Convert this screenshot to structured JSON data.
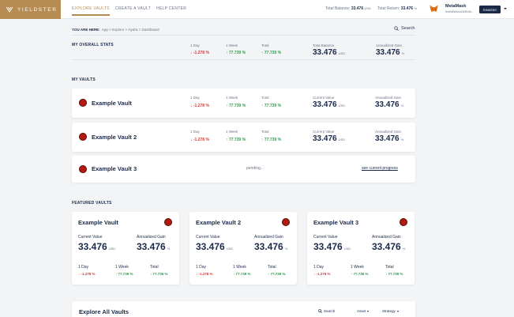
{
  "brand": {
    "name": "YIELDSTER",
    "color": "#b78c52"
  },
  "nav": [
    {
      "label": "EXPLORE VAULTS",
      "active": true
    },
    {
      "label": "CREATE A VAULT",
      "active": false
    },
    {
      "label": "HELP CENTER",
      "active": false
    }
  ],
  "wallet": {
    "total_balance_label": "Total Balance:",
    "total_balance_value": "33.476",
    "total_balance_unit": "USD",
    "total_return_label": "Total Return:",
    "total_return_value": "33.476",
    "total_return_unit": "%",
    "provider": "MetaMask",
    "address": "0x6d5d3a41b5b3e...",
    "network": "RINKEBY"
  },
  "breadcrumb": {
    "prefix": "YOU ARE HERE:",
    "path": "App > Explore > Hydra > Dashboard"
  },
  "search_label": "Search",
  "overall": {
    "title": "MY OVERALL STATS",
    "day_label": "1 Day",
    "day_value": "↓ -1.278 %",
    "week_label": "1 Week",
    "week_value": "↑ 77.739 %",
    "total_label": "Total",
    "total_value": "↑ 77.739 %",
    "balance_label": "Total Balance",
    "balance_value": "33.476",
    "balance_unit": "USD",
    "gain_label": "Annualized Gain",
    "gain_value": "33.476",
    "gain_unit": "%"
  },
  "my_vaults": {
    "title": "MY VAULTS",
    "items": [
      {
        "name": "Example Vault",
        "day_label": "1 Day",
        "day_value": "↓ -1.278 %",
        "week_label": "1 Week",
        "week_value": "↑ 77.739 %",
        "total_label": "Total",
        "total_value": "↑ 77.739 %",
        "current_label": "Current Value",
        "current_value": "33.476",
        "current_unit": "USD",
        "gain_label": "Annualized Gain",
        "gain_value": "33.476",
        "gain_unit": "%"
      },
      {
        "name": "Example Vault 2",
        "day_label": "1 Day",
        "day_value": "↓ -1.278 %",
        "week_label": "1 Week",
        "week_value": "↑ 77.739 %",
        "total_label": "Total",
        "total_value": "↑ 77.739 %",
        "current_label": "Current Value",
        "current_value": "33.476",
        "current_unit": "USD",
        "gain_label": "Annualized Gain",
        "gain_value": "33.476",
        "gain_unit": "%"
      },
      {
        "name": "Example Vault 3",
        "status": "pending...",
        "link": "see current progress"
      }
    ]
  },
  "featured": {
    "title": "FEATURED VAULTS",
    "items": [
      {
        "name": "Example Vault",
        "current_label": "Current Value",
        "current_value": "33.476",
        "current_unit": "USD",
        "gain_label": "Annualized Gain",
        "gain_value": "33.476",
        "gain_unit": "%",
        "day_label": "1 Day",
        "day_value": "↓ -1.278 %",
        "week_label": "1 Week",
        "week_value": "↑ 77.739 %",
        "total_label": "Total",
        "total_value": "↑ 77.739 %"
      },
      {
        "name": "Example Vault 2",
        "current_label": "Current Value",
        "current_value": "33.476",
        "current_unit": "USD",
        "gain_label": "Annualized Gain",
        "gain_value": "33.476",
        "gain_unit": "%",
        "day_label": "1 Day",
        "day_value": "↓ -1.278 %",
        "week_label": "1 Week",
        "week_value": "↑ 77.739 %",
        "total_label": "Total",
        "total_value": "↑ 77.739 %"
      },
      {
        "name": "Example Vault 3",
        "current_label": "Current Value",
        "current_value": "33.476",
        "current_unit": "USD",
        "gain_label": "Annualized Gain",
        "gain_value": "33.476",
        "gain_unit": "%",
        "day_label": "1 Day",
        "day_value": "↓ -1.278 %",
        "week_label": "1 Week",
        "week_value": "↑ 77.739 %",
        "total_label": "Total",
        "total_value": "↑ 77.739 %"
      }
    ]
  },
  "explore_all": {
    "title": "Explore All Vaults",
    "search_label": "Search",
    "asset_label": "Asset",
    "strategy_label": "Strategy"
  },
  "colors": {
    "negative": "#d63a3a",
    "positive": "#2d9a4c",
    "navy": "#1b2a4a",
    "vault_icon": "#b01a12"
  }
}
